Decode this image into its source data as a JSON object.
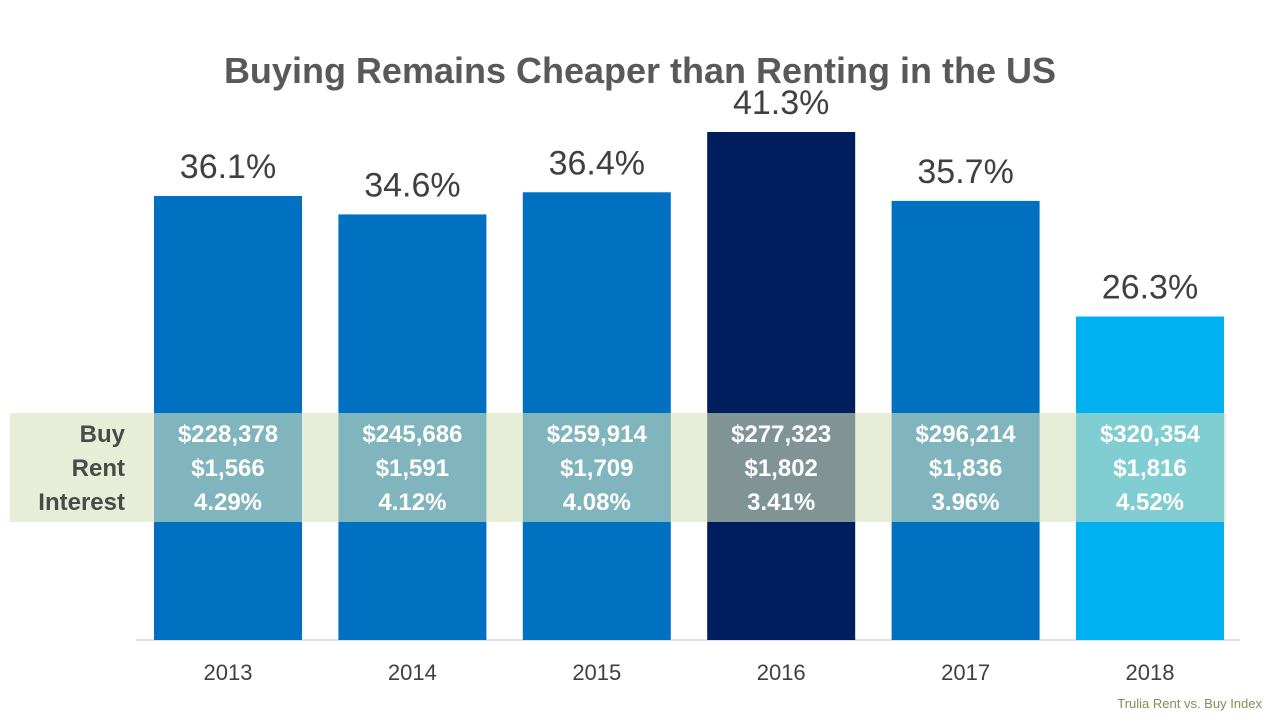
{
  "chart_data": {
    "type": "bar",
    "title": "Buying Remains Cheaper than Renting in the US",
    "categories": [
      "2013",
      "2014",
      "2015",
      "2016",
      "2017",
      "2018"
    ],
    "values": [
      36.1,
      34.6,
      36.4,
      41.3,
      35.7,
      26.3
    ],
    "value_labels": [
      "36.1%",
      "34.6%",
      "36.4%",
      "41.3%",
      "35.7%",
      "26.3%"
    ],
    "ylim": [
      0,
      50
    ],
    "grid": false,
    "xlabel": "",
    "ylabel": "",
    "colors": {
      "default": "#0070c0",
      "highlight": "#001e5e",
      "latest": "#00b0f0",
      "band": "#d6e3bc"
    },
    "bar_colors": [
      "#0070c0",
      "#0070c0",
      "#0070c0",
      "#001e5e",
      "#0070c0",
      "#00b0f0"
    ],
    "table": {
      "row_labels": [
        "Buy",
        "Rent",
        "Interest"
      ],
      "rows": [
        [
          "$228,378",
          "$245,686",
          "$259,914",
          "$277,323",
          "$296,214",
          "$320,354"
        ],
        [
          "$1,566",
          "$1,591",
          "$1,709",
          "$1,802",
          "$1,836",
          "$1,816"
        ],
        [
          "4.29%",
          "4.12%",
          "4.08%",
          "3.41%",
          "3.96%",
          "4.52%"
        ]
      ]
    },
    "source": "Trulia Rent vs. Buy Index"
  }
}
